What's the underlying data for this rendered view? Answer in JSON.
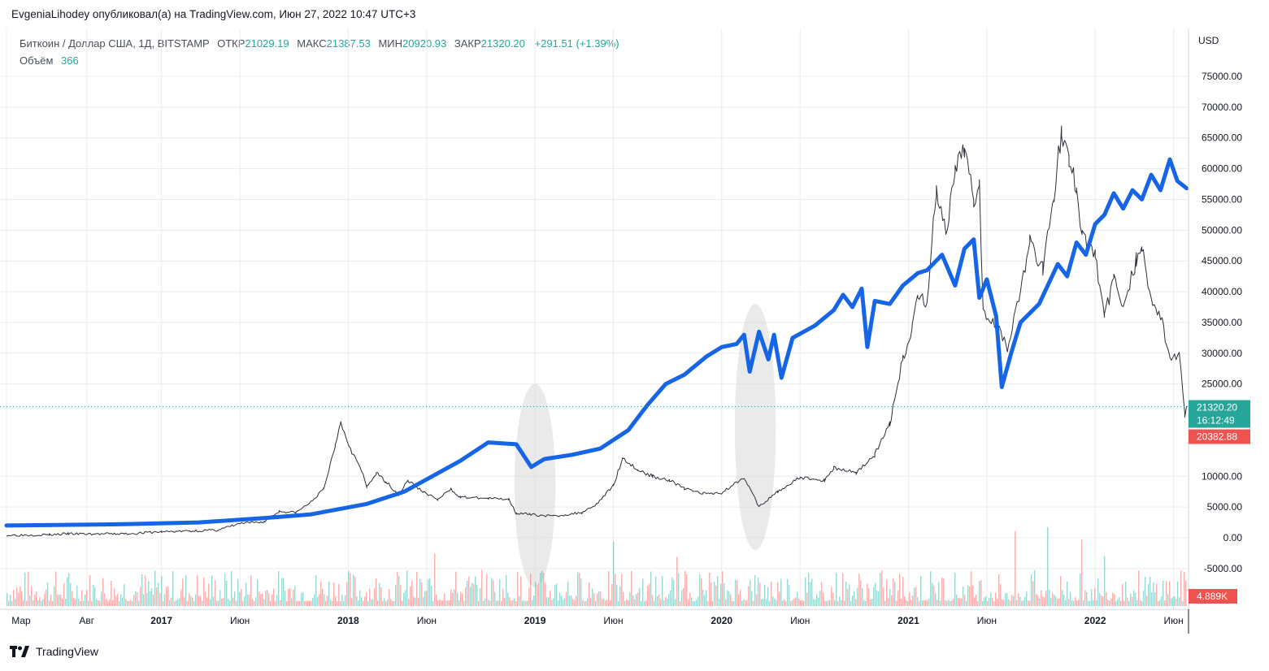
{
  "header": {
    "text": "EvgeniaLihodey опубликовал(а) на TradingView.com, Июн 27, 2022 10:47 UTC+3"
  },
  "legend": {
    "symbol": "Биткоин / Доллар США, 1Д, BITSTAMP",
    "open_label": "ОТКР",
    "open": "21029.19",
    "high_label": "МАКС",
    "high": "21387.53",
    "low_label": "МИН",
    "low": "20920.93",
    "close_label": "ЗАКР",
    "close": "21320.20",
    "change": "+291.51 (+1.39%)",
    "volume_label": "Объём",
    "volume": "366"
  },
  "colors": {
    "bull": "#26a69a",
    "bear": "#ef5350",
    "overlay": "#1565e6",
    "grid": "#ececec",
    "badge_green": "#26a69a",
    "badge_red": "#ef5350",
    "text": "#131722"
  },
  "footer": {
    "brand": "TradingView",
    "logo_icon": "tradingview-logo-icon"
  },
  "chart_data": {
    "type": "line",
    "title": "Биткоин / Доллар США, 1Д, BITSTAMP",
    "currency": "USD",
    "x_tick_labels": [
      "Мар",
      "Авг",
      "2017",
      "Июн",
      "2018",
      "Июн",
      "2019",
      "Июн",
      "2020",
      "Июн",
      "2021",
      "Июн",
      "2022",
      "Июн"
    ],
    "x_tick_years": [
      2016.17,
      2016.6,
      2017.0,
      2017.42,
      2018.0,
      2018.42,
      2019.0,
      2019.42,
      2020.0,
      2020.42,
      2021.0,
      2021.42,
      2022.0,
      2022.42
    ],
    "x_tick_bold": [
      false,
      false,
      true,
      false,
      true,
      false,
      true,
      false,
      true,
      false,
      true,
      false,
      true,
      false
    ],
    "y_tick_labels": [
      "75000.00",
      "70000.00",
      "65000.00",
      "60000.00",
      "55000.00",
      "50000.00",
      "45000.00",
      "40000.00",
      "35000.00",
      "30000.00",
      "25000.00",
      "10000.00",
      "5000.00",
      "0.00",
      "-5000.00"
    ],
    "y_tick_values": [
      75000,
      70000,
      65000,
      60000,
      55000,
      50000,
      45000,
      40000,
      35000,
      30000,
      25000,
      10000,
      5000,
      0,
      -5000
    ],
    "ylim": [
      -10000,
      82000
    ],
    "xlim": [
      2016.17,
      2022.5
    ],
    "last_price_label": "21320.20",
    "countdown_label": "16:12:49",
    "low_marker_label": "20382.88",
    "last_price": 21320.2,
    "low_marker_price": 20382.88,
    "volume_badge_label": "4.889K",
    "series": [
      {
        "name": "BTCUSD price",
        "kind": "candles_line",
        "points": [
          [
            2016.17,
            420
          ],
          [
            2016.4,
            500
          ],
          [
            2016.5,
            650
          ],
          [
            2016.6,
            600
          ],
          [
            2016.8,
            640
          ],
          [
            2017.0,
            970
          ],
          [
            2017.15,
            1100
          ],
          [
            2017.3,
            1250
          ],
          [
            2017.42,
            2300
          ],
          [
            2017.55,
            2600
          ],
          [
            2017.63,
            4300
          ],
          [
            2017.72,
            4100
          ],
          [
            2017.8,
            5800
          ],
          [
            2017.87,
            8000
          ],
          [
            2017.93,
            15000
          ],
          [
            2017.96,
            19200
          ],
          [
            2017.98,
            17000
          ],
          [
            2018.02,
            14000
          ],
          [
            2018.07,
            11000
          ],
          [
            2018.1,
            8200
          ],
          [
            2018.15,
            10500
          ],
          [
            2018.2,
            9200
          ],
          [
            2018.27,
            7000
          ],
          [
            2018.32,
            9300
          ],
          [
            2018.4,
            7500
          ],
          [
            2018.48,
            6200
          ],
          [
            2018.55,
            7900
          ],
          [
            2018.6,
            6600
          ],
          [
            2018.75,
            6400
          ],
          [
            2018.86,
            6300
          ],
          [
            2018.9,
            4000
          ],
          [
            2018.97,
            3800
          ],
          [
            2019.1,
            3500
          ],
          [
            2019.25,
            4100
          ],
          [
            2019.33,
            5500
          ],
          [
            2019.42,
            8500
          ],
          [
            2019.47,
            13000
          ],
          [
            2019.55,
            11000
          ],
          [
            2019.63,
            10000
          ],
          [
            2019.72,
            9400
          ],
          [
            2019.8,
            8000
          ],
          [
            2019.9,
            7200
          ],
          [
            2020.0,
            7300
          ],
          [
            2020.12,
            9900
          ],
          [
            2020.2,
            5000
          ],
          [
            2020.3,
            7500
          ],
          [
            2020.42,
            9800
          ],
          [
            2020.55,
            9300
          ],
          [
            2020.6,
            11400
          ],
          [
            2020.72,
            10600
          ],
          [
            2020.82,
            13500
          ],
          [
            2020.9,
            18500
          ],
          [
            2020.97,
            29000
          ],
          [
            2021.02,
            34000
          ],
          [
            2021.05,
            40000
          ],
          [
            2021.1,
            38000
          ],
          [
            2021.15,
            57000
          ],
          [
            2021.2,
            49000
          ],
          [
            2021.25,
            59000
          ],
          [
            2021.3,
            63500
          ],
          [
            2021.35,
            55000
          ],
          [
            2021.38,
            58000
          ],
          [
            2021.4,
            37000
          ],
          [
            2021.47,
            35000
          ],
          [
            2021.53,
            31000
          ],
          [
            2021.6,
            40000
          ],
          [
            2021.65,
            48000
          ],
          [
            2021.72,
            44000
          ],
          [
            2021.78,
            56000
          ],
          [
            2021.82,
            66000
          ],
          [
            2021.86,
            61000
          ],
          [
            2021.9,
            57000
          ],
          [
            2021.93,
            49000
          ],
          [
            2022.0,
            46000
          ],
          [
            2022.05,
            36000
          ],
          [
            2022.1,
            42000
          ],
          [
            2022.15,
            38000
          ],
          [
            2022.22,
            45000
          ],
          [
            2022.25,
            47000
          ],
          [
            2022.3,
            39000
          ],
          [
            2022.35,
            36000
          ],
          [
            2022.4,
            29000
          ],
          [
            2022.45,
            30000
          ],
          [
            2022.48,
            20000
          ],
          [
            2022.49,
            21320
          ]
        ]
      },
      {
        "name": "Overlay projection",
        "kind": "line",
        "points": [
          [
            2016.17,
            2000
          ],
          [
            2016.8,
            2200
          ],
          [
            2017.2,
            2500
          ],
          [
            2017.55,
            3200
          ],
          [
            2017.8,
            3800
          ],
          [
            2018.1,
            5500
          ],
          [
            2018.3,
            7500
          ],
          [
            2018.45,
            10000
          ],
          [
            2018.6,
            12500
          ],
          [
            2018.75,
            15500
          ],
          [
            2018.9,
            15200
          ],
          [
            2018.98,
            11500
          ],
          [
            2019.05,
            12800
          ],
          [
            2019.2,
            13500
          ],
          [
            2019.35,
            14500
          ],
          [
            2019.5,
            17500
          ],
          [
            2019.6,
            21500
          ],
          [
            2019.7,
            25000
          ],
          [
            2019.8,
            26500
          ],
          [
            2019.92,
            29500
          ],
          [
            2020.0,
            31000
          ],
          [
            2020.08,
            31500
          ],
          [
            2020.12,
            33000
          ],
          [
            2020.15,
            27000
          ],
          [
            2020.2,
            33500
          ],
          [
            2020.25,
            29000
          ],
          [
            2020.28,
            33000
          ],
          [
            2020.32,
            26000
          ],
          [
            2020.38,
            32500
          ],
          [
            2020.5,
            34500
          ],
          [
            2020.6,
            37000
          ],
          [
            2020.65,
            39500
          ],
          [
            2020.7,
            37500
          ],
          [
            2020.75,
            40500
          ],
          [
            2020.78,
            31000
          ],
          [
            2020.82,
            38500
          ],
          [
            2020.9,
            38000
          ],
          [
            2020.97,
            41000
          ],
          [
            2021.05,
            43000
          ],
          [
            2021.1,
            43500
          ],
          [
            2021.18,
            46000
          ],
          [
            2021.25,
            41000
          ],
          [
            2021.3,
            47000
          ],
          [
            2021.35,
            48500
          ],
          [
            2021.38,
            39000
          ],
          [
            2021.42,
            42000
          ],
          [
            2021.47,
            36000
          ],
          [
            2021.5,
            24500
          ],
          [
            2021.55,
            30000
          ],
          [
            2021.6,
            35000
          ],
          [
            2021.7,
            38000
          ],
          [
            2021.8,
            44500
          ],
          [
            2021.85,
            42500
          ],
          [
            2021.9,
            48000
          ],
          [
            2021.95,
            46000
          ],
          [
            2022.0,
            51000
          ],
          [
            2022.05,
            52500
          ],
          [
            2022.1,
            56000
          ],
          [
            2022.15,
            53500
          ],
          [
            2022.2,
            56500
          ],
          [
            2022.25,
            55000
          ],
          [
            2022.3,
            59000
          ],
          [
            2022.35,
            56500
          ],
          [
            2022.4,
            61500
          ],
          [
            2022.44,
            58000
          ],
          [
            2022.49,
            56800
          ]
        ]
      }
    ]
  }
}
